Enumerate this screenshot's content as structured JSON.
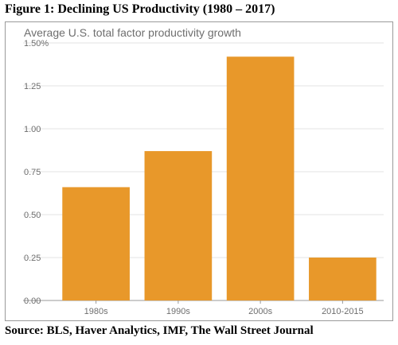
{
  "figure_title": "Figure 1: Declining US Productivity  (1980 – 2017)",
  "source": "Source: BLS, Haver Analytics, IMF, The Wall Street Journal",
  "colors": {
    "bar": "#e8982a",
    "grid": "#e3e3e3",
    "axis": "#9a9a9a",
    "text": "#6e6e6e"
  },
  "chart_data": {
    "type": "bar",
    "subtitle": "Average U.S. total factor productivity growth",
    "categories": [
      "1980s",
      "1990s",
      "2000s",
      "2010-2015"
    ],
    "values": [
      0.66,
      0.87,
      1.42,
      0.25
    ],
    "ylim": [
      0,
      1.5
    ],
    "yticks": [
      0,
      0.25,
      0.5,
      0.75,
      1.0,
      1.25,
      1.5
    ],
    "ytick_labels": [
      "0.00",
      "0.25",
      "0.50",
      "0.75",
      "1.00",
      "1.25",
      "1.50%"
    ],
    "grid": true,
    "legend": "none"
  }
}
